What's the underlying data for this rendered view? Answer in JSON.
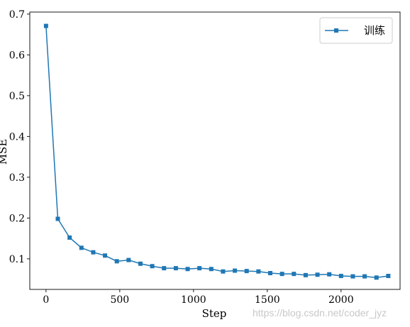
{
  "chart_data": {
    "type": "line",
    "xlabel": "Step",
    "ylabel": "MSE",
    "xlim": [
      -110,
      2400
    ],
    "ylim": [
      0.025,
      0.705
    ],
    "xticks": [
      0,
      500,
      1000,
      1500,
      2000
    ],
    "yticks": [
      0.1,
      0.2,
      0.3,
      0.4,
      0.5,
      0.6,
      0.7
    ],
    "grid": false,
    "legend": "top-right",
    "series": [
      {
        "name": "训练",
        "color": "#1f77b4",
        "marker": "square",
        "x": [
          0,
          80,
          160,
          240,
          320,
          400,
          480,
          560,
          640,
          720,
          800,
          880,
          960,
          1040,
          1120,
          1200,
          1280,
          1360,
          1440,
          1520,
          1600,
          1680,
          1760,
          1840,
          1920,
          2000,
          2080,
          2160,
          2240,
          2320
        ],
        "y": [
          0.671,
          0.198,
          0.152,
          0.127,
          0.116,
          0.108,
          0.094,
          0.097,
          0.088,
          0.082,
          0.077,
          0.077,
          0.075,
          0.077,
          0.075,
          0.069,
          0.071,
          0.07,
          0.069,
          0.065,
          0.063,
          0.063,
          0.06,
          0.061,
          0.062,
          0.058,
          0.057,
          0.057,
          0.054,
          0.058
        ]
      }
    ]
  },
  "watermark": "https://blog.csdn.net/coder_jyz"
}
